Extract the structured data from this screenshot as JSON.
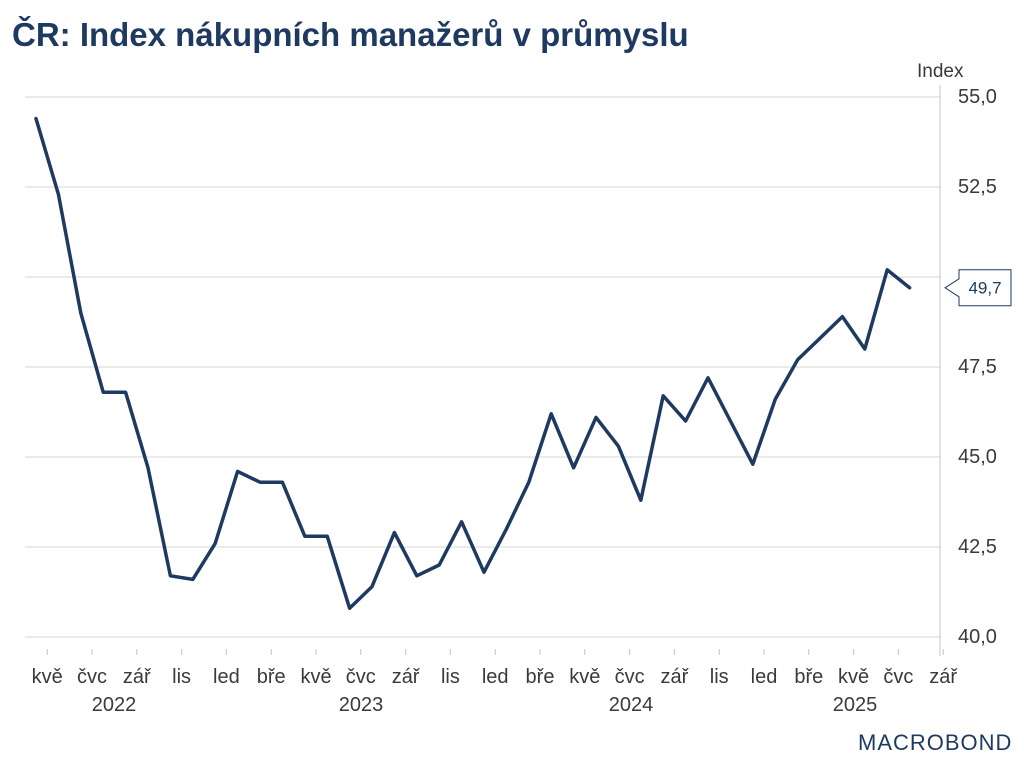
{
  "chart_data": {
    "type": "line",
    "title": "ČR: Index nákupních manažerů v průmyslu",
    "ylabel": "Index",
    "ylim": [
      40,
      55
    ],
    "grid": true,
    "y_ticks": [
      {
        "value": 55,
        "label": "55,0"
      },
      {
        "value": 52.5,
        "label": "52,5"
      },
      {
        "value": 50
      },
      {
        "value": 47.5,
        "label": "47,5"
      },
      {
        "value": 45,
        "label": "45,0"
      },
      {
        "value": 42.5,
        "label": "42,5"
      },
      {
        "value": 40,
        "label": "40,0"
      }
    ],
    "x": [
      "2022-05",
      "2022-06",
      "2022-07",
      "2022-08",
      "2022-09",
      "2022-10",
      "2022-11",
      "2022-12",
      "2023-01",
      "2023-02",
      "2023-03",
      "2023-04",
      "2023-05",
      "2023-06",
      "2023-07",
      "2023-08",
      "2023-09",
      "2023-10",
      "2023-11",
      "2023-12",
      "2024-01",
      "2024-02",
      "2024-03",
      "2024-04",
      "2024-05",
      "2024-06",
      "2024-07",
      "2024-08",
      "2024-09",
      "2024-10",
      "2024-11",
      "2024-12",
      "2025-01",
      "2025-02",
      "2025-03",
      "2025-04",
      "2025-05",
      "2025-06",
      "2025-07",
      "2025-08"
    ],
    "x_ticks": [
      {
        "month": "2022-05",
        "label": "kvě"
      },
      {
        "month": "2022-07",
        "label": "čvc"
      },
      {
        "month": "2022-09",
        "label": "zář"
      },
      {
        "month": "2022-11",
        "label": "lis"
      },
      {
        "month": "2023-01",
        "label": "led"
      },
      {
        "month": "2023-03",
        "label": "bře"
      },
      {
        "month": "2023-05",
        "label": "kvě"
      },
      {
        "month": "2023-07",
        "label": "čvc"
      },
      {
        "month": "2023-09",
        "label": "zář"
      },
      {
        "month": "2023-11",
        "label": "lis"
      },
      {
        "month": "2024-01",
        "label": "led"
      },
      {
        "month": "2024-03",
        "label": "bře"
      },
      {
        "month": "2024-05",
        "label": "kvě"
      },
      {
        "month": "2024-07",
        "label": "čvc"
      },
      {
        "month": "2024-09",
        "label": "zář"
      },
      {
        "month": "2024-11",
        "label": "lis"
      },
      {
        "month": "2025-01",
        "label": "led"
      },
      {
        "month": "2025-03",
        "label": "bře"
      },
      {
        "month": "2025-05",
        "label": "kvě"
      },
      {
        "month": "2025-07",
        "label": "čvc"
      },
      {
        "month": "2025-09",
        "label": "zář"
      }
    ],
    "x_years": [
      "2022",
      "2023",
      "2024",
      "2025"
    ],
    "series": [
      {
        "values": [
          54.4,
          52.3,
          49.0,
          46.8,
          46.8,
          44.7,
          41.7,
          41.6,
          42.6,
          44.6,
          44.3,
          44.3,
          42.8,
          42.8,
          40.8,
          41.4,
          42.9,
          41.7,
          42.0,
          43.2,
          41.8,
          43.0,
          44.3,
          46.2,
          44.7,
          46.1,
          45.3,
          43.8,
          46.7,
          46.0,
          47.2,
          46.0,
          44.8,
          46.6,
          47.7,
          48.3,
          48.9,
          48.0,
          50.2,
          49.7
        ]
      }
    ],
    "last_value_label": "49,7"
  },
  "logo": {
    "text": "MACROBOND"
  },
  "colors": {
    "title": "#1f3a60",
    "line": "#1f3a60",
    "grid": "#d6d6d6",
    "axis": "#c4c4c4",
    "text": "#3a3a3a",
    "callout_border": "#1f3a60"
  }
}
